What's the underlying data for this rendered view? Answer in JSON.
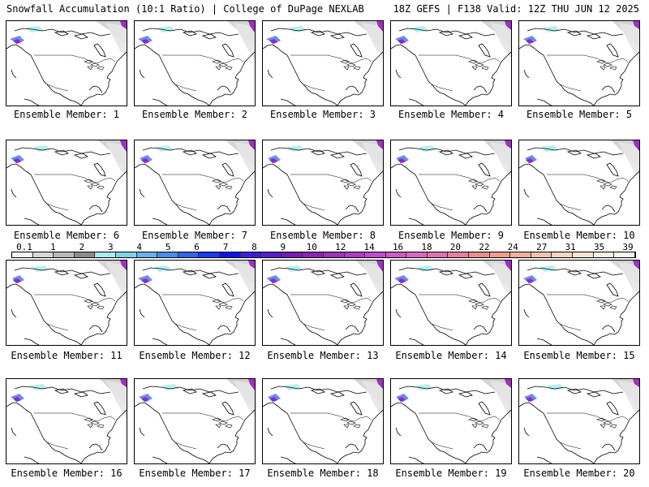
{
  "header": {
    "title_left": "Snowfall Accumulation (10:1 Ratio) | College of DuPage NEXLAB",
    "title_right": "18Z GEFS | F138 Valid: 12Z THU JUN 12 2025"
  },
  "panels": [
    {
      "label": "Ensemble Member: 1"
    },
    {
      "label": "Ensemble Member: 2"
    },
    {
      "label": "Ensemble Member: 3"
    },
    {
      "label": "Ensemble Member: 4"
    },
    {
      "label": "Ensemble Member: 5"
    },
    {
      "label": "Ensemble Member: 6"
    },
    {
      "label": "Ensemble Member: 7"
    },
    {
      "label": "Ensemble Member: 8"
    },
    {
      "label": "Ensemble Member: 9"
    },
    {
      "label": "Ensemble Member: 10"
    },
    {
      "label": "Ensemble Member: 11"
    },
    {
      "label": "Ensemble Member: 12"
    },
    {
      "label": "Ensemble Member: 13"
    },
    {
      "label": "Ensemble Member: 14"
    },
    {
      "label": "Ensemble Member: 15"
    },
    {
      "label": "Ensemble Member: 16"
    },
    {
      "label": "Ensemble Member: 17"
    },
    {
      "label": "Ensemble Member: 18"
    },
    {
      "label": "Ensemble Member: 19"
    },
    {
      "label": "Ensemble Member: 20"
    }
  ],
  "legend": {
    "ticks": [
      "0.1",
      "1",
      "2",
      "3",
      "4",
      "5",
      "6",
      "7",
      "8",
      "9",
      "10",
      "12",
      "14",
      "16",
      "18",
      "20",
      "22",
      "24",
      "27",
      "31",
      "35",
      "39"
    ],
    "colors": [
      "#f4f4f4",
      "#d8d8d8",
      "#b8b8b8",
      "#8c8c8c",
      "#a8eaf0",
      "#82d2e6",
      "#6ab0ec",
      "#4a8cf0",
      "#3264f0",
      "#1c3cf0",
      "#1010e8",
      "#3c20d8",
      "#5a1ec8",
      "#761cb8",
      "#8c24b8",
      "#a030c0",
      "#b03cc8",
      "#c24ad0",
      "#d058c8",
      "#da68c0",
      "#e070b0",
      "#e4809c",
      "#ea8c8c",
      "#ef9c8c",
      "#f2b09c",
      "#f4c2ac",
      "#f6d6c0",
      "#f8e4d4",
      "#faf0e4",
      "#fcf6ee"
    ]
  }
}
